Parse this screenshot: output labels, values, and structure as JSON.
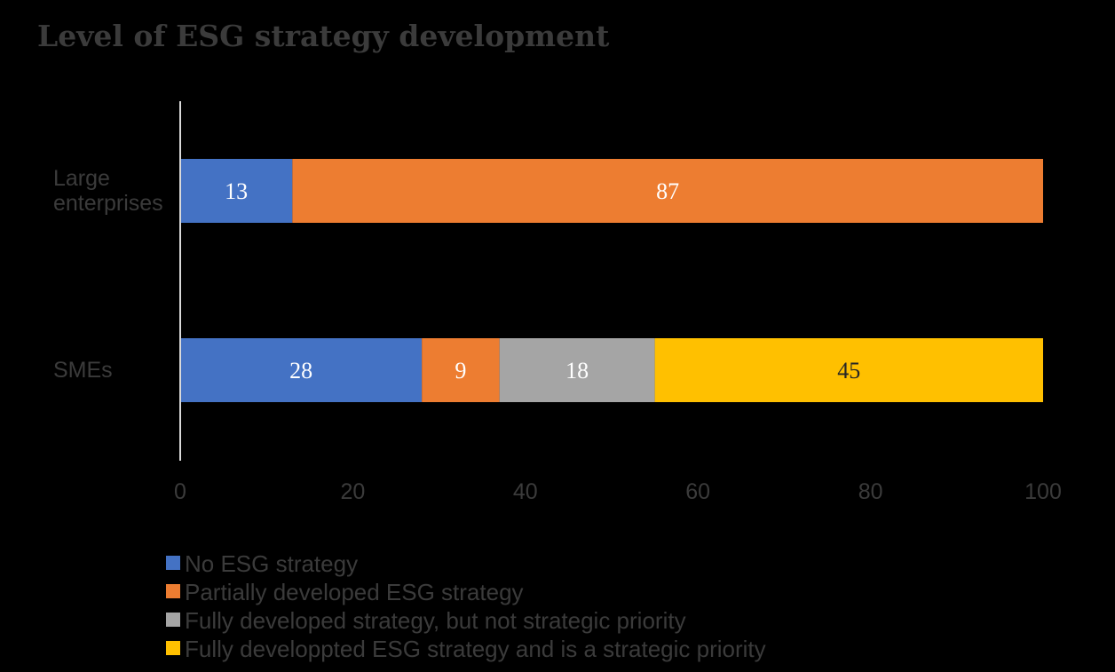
{
  "chart_data": {
    "type": "bar",
    "orientation": "horizontal",
    "stacked": true,
    "title": "Level of ESG strategy development",
    "xlabel": "",
    "ylabel": "",
    "xlim": [
      0,
      100
    ],
    "x_ticks": [
      0,
      20,
      40,
      60,
      80,
      100
    ],
    "grid": false,
    "legend_position": "bottom-left",
    "categories": [
      {
        "lines": [
          "Large",
          "enterprises"
        ]
      },
      {
        "lines": [
          "SMEs"
        ]
      }
    ],
    "series": [
      {
        "name": "No ESG strategy",
        "color": "#4472C4",
        "values": [
          13,
          28
        ]
      },
      {
        "name": "Partially developed ESG strategy",
        "color": "#ED7D31",
        "values": [
          87,
          9
        ]
      },
      {
        "name": "Fully developed strategy, but not strategic priority",
        "color": "#A5A5A5",
        "values": [
          0,
          18
        ]
      },
      {
        "name": "Fully developpted ESG strategy and is a strategic priority",
        "color": "#FFC000",
        "values": [
          0,
          45
        ]
      }
    ],
    "colors": {
      "background": "#000000",
      "title": "#3B3B3B",
      "text": "#3B3B3B",
      "axis": "#D9D9D9",
      "data_label": "#FFFFFF",
      "data_label_dark": "#262626"
    }
  }
}
